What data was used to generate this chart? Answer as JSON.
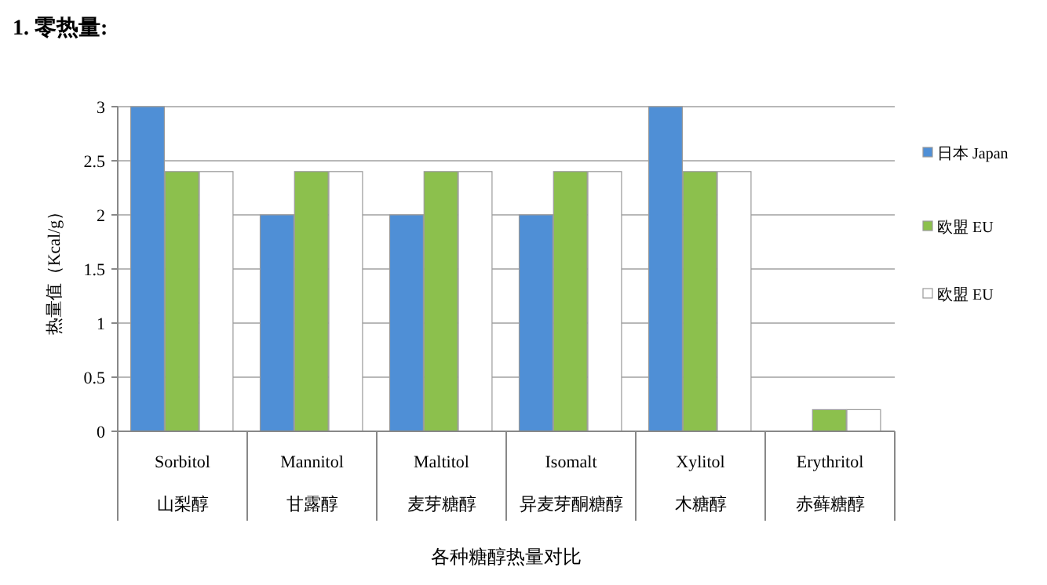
{
  "chart_data": {
    "type": "bar",
    "title": "1.  零热量:",
    "ylabel": "热量值（Kcal/g）",
    "annotations": [
      "各种糖醇热量对比"
    ],
    "categories": [
      "Sorbitol 山梨醇",
      "Mannitol 甘露醇",
      "Maltitol 麦芽糖醇",
      "Isomalt 异麦芽酮糖醇",
      "Xylitol 木糖醇",
      "Erythritol 赤藓糖醇"
    ],
    "series": [
      {
        "name": "日本 Japan",
        "color": "#4f8fd6",
        "values": [
          3,
          2,
          2,
          2,
          3,
          0
        ]
      },
      {
        "name": "欧盟 EU",
        "color": "#8cc04d",
        "values": [
          2.4,
          2.4,
          2.4,
          2.4,
          2.4,
          0.2
        ]
      },
      {
        "name": "欧盟 EU",
        "color": "#ffffff",
        "values": [
          2.4,
          2.4,
          2.4,
          2.4,
          2.4,
          0.2
        ]
      }
    ],
    "ylim": [
      0,
      3
    ],
    "yticks": [
      0,
      0.5,
      1,
      1.5,
      2,
      2.5,
      3
    ],
    "grid": "y",
    "legend": "right"
  }
}
